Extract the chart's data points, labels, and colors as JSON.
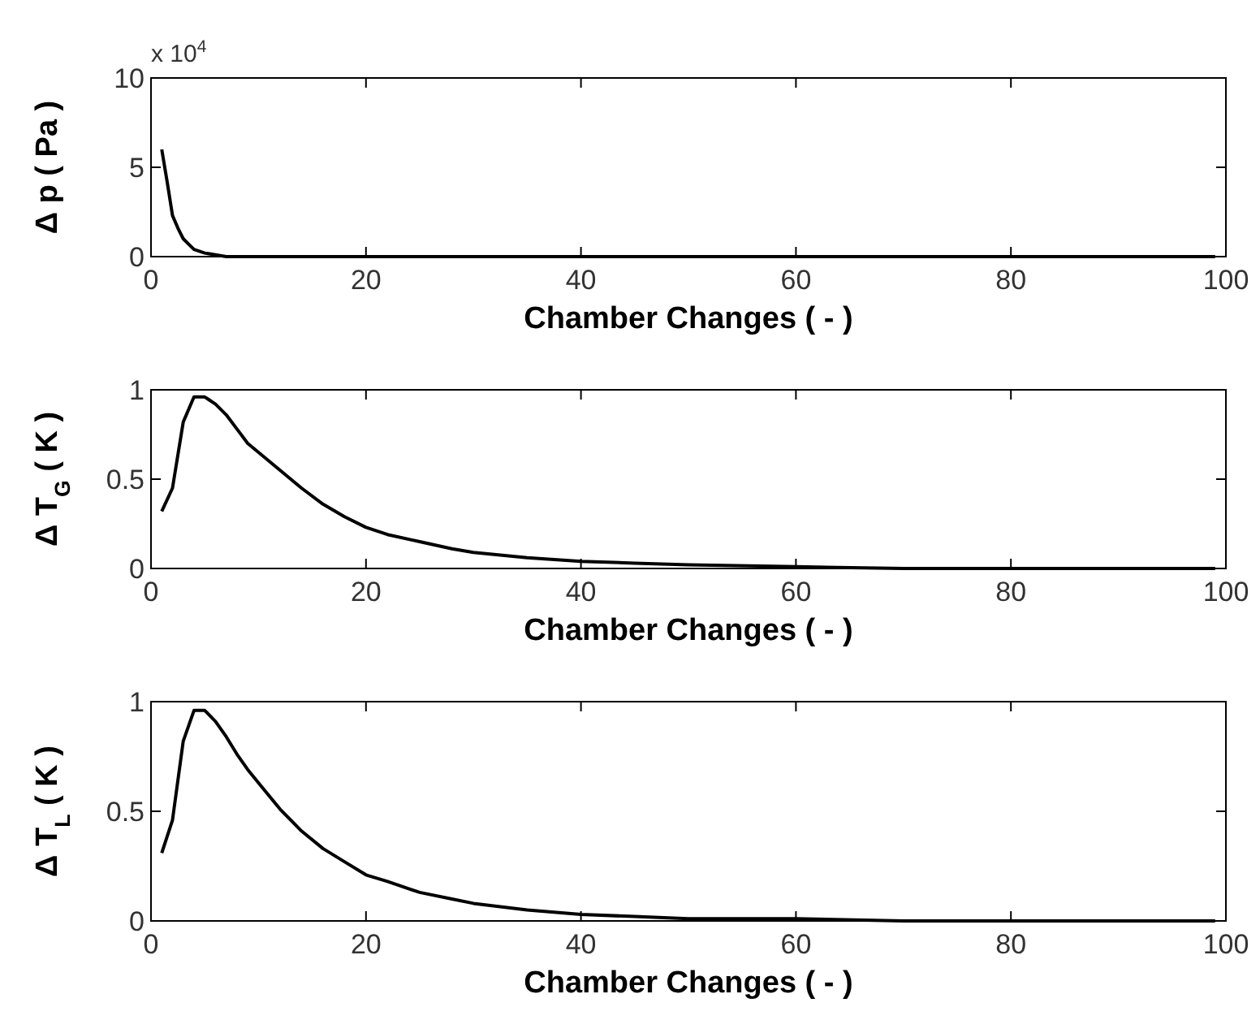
{
  "chart_data": [
    {
      "type": "line",
      "xlabel": "Chamber Changes ( - )",
      "ylabel": "Δ p ( Pa )",
      "annotations": [
        "x 10$^{4}$"
      ],
      "xlim": [
        0,
        100
      ],
      "xticks": [
        0,
        20,
        40,
        60,
        80,
        100
      ],
      "ylim": [
        0,
        10
      ],
      "yticks": [
        0,
        5,
        10
      ],
      "grid": false,
      "series": [
        {
          "color": "#000000",
          "x": [
            1,
            1.5,
            2,
            2.5,
            3,
            3.5,
            4,
            5,
            6,
            7,
            10,
            20,
            40,
            60,
            80,
            99
          ],
          "values": [
            6,
            4.2,
            2.3,
            1.6,
            1.0,
            0.7,
            0.4,
            0.2,
            0.1,
            0,
            0,
            0,
            0,
            0,
            0,
            0
          ]
        }
      ]
    },
    {
      "type": "line",
      "xlabel": "Chamber Changes ( - )",
      "ylabel": "Δ T$_{G}$ ( K )",
      "xlim": [
        0,
        100
      ],
      "xticks": [
        0,
        20,
        40,
        60,
        80,
        100
      ],
      "ylim": [
        0,
        1
      ],
      "yticks": [
        0,
        0.5,
        1
      ],
      "grid": false,
      "series": [
        {
          "color": "#000000",
          "x": [
            1,
            2,
            3,
            4,
            5,
            6,
            7,
            8,
            9,
            10,
            12,
            14,
            16,
            18,
            20,
            22,
            25,
            28,
            30,
            35,
            40,
            45,
            50,
            60,
            70,
            80,
            99
          ],
          "values": [
            0.32,
            0.45,
            0.82,
            0.96,
            0.96,
            0.92,
            0.86,
            0.78,
            0.7,
            0.65,
            0.55,
            0.45,
            0.36,
            0.29,
            0.23,
            0.19,
            0.15,
            0.11,
            0.09,
            0.06,
            0.04,
            0.03,
            0.02,
            0.01,
            0,
            0,
            0
          ]
        }
      ]
    },
    {
      "type": "line",
      "xlabel": "Chamber Changes ( - )",
      "ylabel": "Δ T$_{L}$ ( K )",
      "xlim": [
        0,
        100
      ],
      "xticks": [
        0,
        20,
        40,
        60,
        80,
        100
      ],
      "ylim": [
        0,
        1
      ],
      "yticks": [
        0,
        0.5,
        1
      ],
      "grid": false,
      "series": [
        {
          "color": "#000000",
          "x": [
            1,
            2,
            3,
            4,
            5,
            6,
            7,
            8,
            9,
            10,
            12,
            14,
            16,
            18,
            20,
            22,
            25,
            28,
            30,
            35,
            40,
            45,
            50,
            60,
            70,
            80,
            99
          ],
          "values": [
            0.31,
            0.46,
            0.82,
            0.96,
            0.96,
            0.91,
            0.84,
            0.76,
            0.69,
            0.63,
            0.51,
            0.41,
            0.33,
            0.27,
            0.21,
            0.18,
            0.13,
            0.1,
            0.08,
            0.05,
            0.03,
            0.02,
            0.01,
            0.01,
            0,
            0,
            0
          ]
        }
      ]
    }
  ]
}
